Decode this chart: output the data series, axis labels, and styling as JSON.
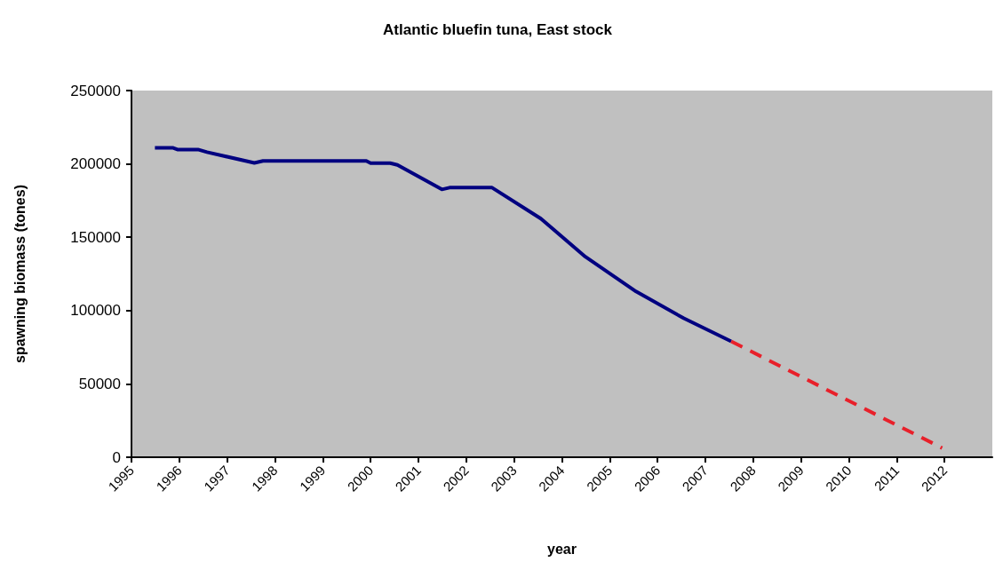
{
  "chart_data": {
    "type": "line",
    "title": "Atlantic bluefin tuna, East stock",
    "xlabel": "year",
    "ylabel": "spawning biomass (tones)",
    "xlim": [
      1995,
      2013
    ],
    "xticks": [
      1995,
      1996,
      1997,
      1998,
      1999,
      2000,
      2001,
      2002,
      2003,
      2004,
      2005,
      2006,
      2007,
      2008,
      2009,
      2010,
      2011,
      2012
    ],
    "ylim": [
      0,
      250000
    ],
    "yticks": [
      0,
      50000,
      100000,
      150000,
      200000,
      250000
    ],
    "grid": false,
    "marker": "none",
    "series": [
      {
        "color": "#000080",
        "line_style": "solid",
        "x": [
          1995.49,
          1995.86,
          1995.96,
          1996.39,
          1996.58,
          1997.57,
          1997.75,
          1999.91,
          2000.0,
          2000.41,
          2000.56,
          2001.49,
          2001.65,
          2002.54,
          2003.56,
          2004.49,
          2005.55,
          2006.55,
          2007.54
        ],
        "values": [
          211000,
          211000,
          209800,
          209800,
          208000,
          200700,
          202000,
          202000,
          200500,
          200500,
          199300,
          182600,
          183800,
          183800,
          162700,
          136700,
          113000,
          94700,
          79000
        ]
      },
      {
        "color": "#e8202a",
        "line_style": "dashed",
        "x": [
          2007.54,
          2011.95
        ],
        "values": [
          79000,
          6300
        ]
      }
    ]
  }
}
